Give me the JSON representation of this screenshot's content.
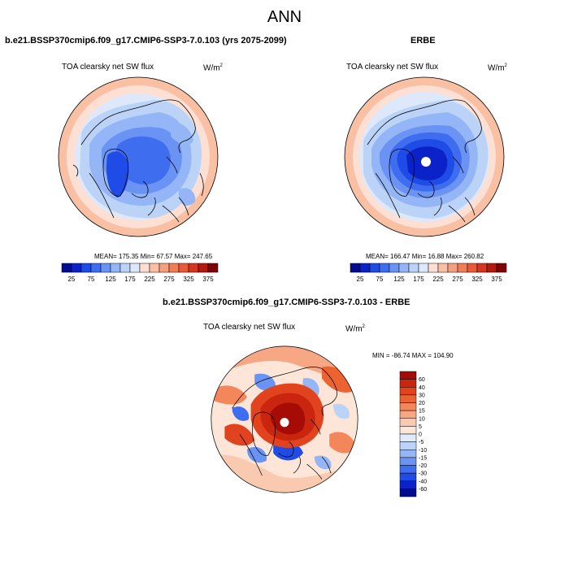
{
  "title": "ANN",
  "panels": [
    {
      "case": "b.e21.BSSP370cmip6.f09_g17.CMIP6-SSP3-7.0.103 (yrs 2075-2099)",
      "field": "TOA clearsky net SW flux",
      "units_base": "W/m",
      "units_exp": "2",
      "stats": "MEAN= 175.35  Min=  67.57  Max= 247.65"
    },
    {
      "case": "ERBE",
      "field": "TOA clearsky net SW flux",
      "units_base": "W/m",
      "units_exp": "2",
      "stats": "MEAN= 166.47  Min=  16.88  Max= 260.82"
    },
    {
      "case": "b.e21.BSSP370cmip6.f09_g17.CMIP6-SSP3-7.0.103 - ERBE",
      "field": "TOA clearsky net SW flux",
      "units_base": "W/m",
      "units_exp": "2",
      "stats": "MIN = -86.74 MAX = 104.90"
    }
  ],
  "horizontal_colorbar": {
    "labels": [
      "25",
      "75",
      "125",
      "175",
      "225",
      "275",
      "325",
      "375"
    ],
    "colors": [
      "#000c8b",
      "#0b22c8",
      "#1f4be6",
      "#3f6df0",
      "#6a93f4",
      "#94b6f6",
      "#bcd3f8",
      "#dde8fb",
      "#fde0d3",
      "#f9c0a4",
      "#f4a07e",
      "#ef7d58",
      "#e85a38",
      "#d6361f",
      "#b11a10",
      "#7e0207"
    ]
  },
  "vertical_colorbar": {
    "labels": [
      "60",
      "40",
      "30",
      "20",
      "15",
      "10",
      "5",
      "0",
      "-5",
      "-10",
      "-15",
      "-20",
      "-30",
      "-40",
      "-60"
    ],
    "colors": [
      "#a70b05",
      "#c9250f",
      "#e0431d",
      "#ec6231",
      "#f3865a",
      "#f7a783",
      "#facab0",
      "#fde5d8",
      "#dfeafb",
      "#bcd3f8",
      "#94b6f6",
      "#6a93f4",
      "#3f6df0",
      "#1f4be6",
      "#0b22c8",
      "#000c8b"
    ]
  }
}
